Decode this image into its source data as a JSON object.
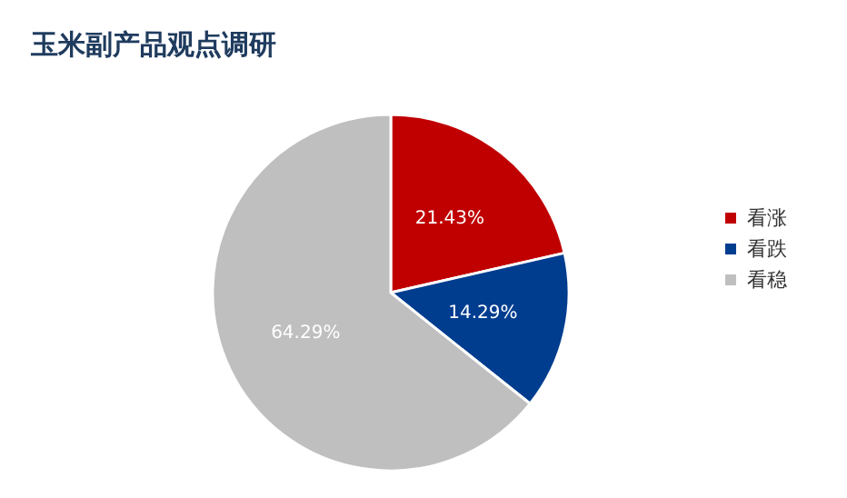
{
  "chart_data": {
    "type": "pie",
    "title": "玉米副产品观点调研",
    "categories": [
      "看涨",
      "看跌",
      "看稳"
    ],
    "values": [
      21.43,
      14.29,
      64.29
    ],
    "value_labels": [
      "21.43%",
      "14.29%",
      "64.29%"
    ],
    "colors": [
      "#c00000",
      "#003d8f",
      "#bfbfbf"
    ],
    "legend": "right"
  }
}
